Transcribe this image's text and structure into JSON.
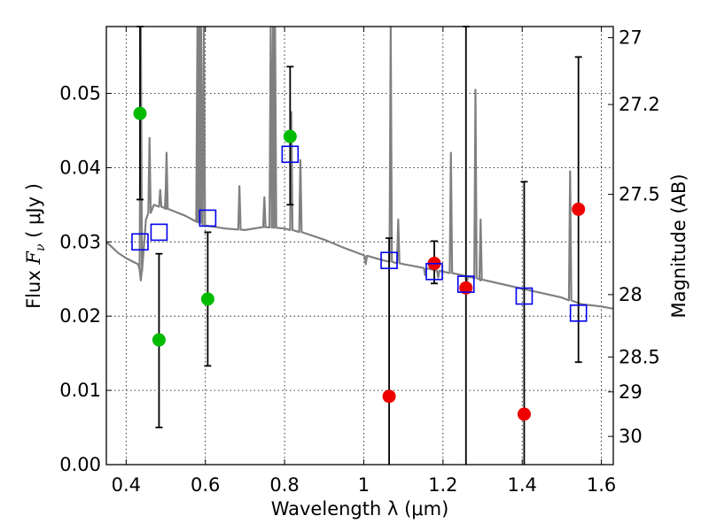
{
  "chart_data": {
    "type": "scatter",
    "xlabel": "Wavelength  λ (μm)",
    "ylabel": "Flux  F_ν  ( μJy )",
    "ylabel_parts": {
      "prefix": "Flux  ",
      "symbol": "F",
      "subscript": "ν",
      "suffix": "  ( μJy )"
    },
    "ylabel_right": "Magnitude (AB)",
    "xlim": [
      0.35,
      1.63
    ],
    "ylim": [
      0.0,
      0.059
    ],
    "grid": true,
    "x_ticks": [
      0.4,
      0.6,
      0.8,
      1.0,
      1.2,
      1.4,
      1.6
    ],
    "x_tick_labels": [
      "0.4",
      "0.6",
      "0.8",
      "1",
      "1.2",
      "1.4",
      "1.6"
    ],
    "y_ticks": [
      0.0,
      0.01,
      0.02,
      0.03,
      0.04,
      0.05
    ],
    "y_tick_labels": [
      "0.00",
      "0.01",
      "0.02",
      "0.03",
      "0.04",
      "0.05"
    ],
    "mag_ticks": [
      27,
      27.2,
      27.5,
      28,
      28.5,
      29,
      30
    ],
    "mag_tick_labels": [
      "27",
      "27.2",
      "27.5",
      "28",
      "28.5",
      "29",
      "30"
    ],
    "mag_tick_flux": [
      0.0575,
      0.0485,
      0.0364,
      0.0229,
      0.0145,
      0.0098,
      0.0038
    ],
    "series": [
      {
        "name": "detections",
        "marker": "circle",
        "color": "#00bb00",
        "points": [
          {
            "x": 0.435,
            "y": 0.0473,
            "err": [
              0.0357,
              0.059
            ]
          },
          {
            "x": 0.483,
            "y": 0.0168,
            "err": [
              0.005,
              0.0284
            ]
          },
          {
            "x": 0.606,
            "y": 0.0223,
            "err": [
              0.0133,
              0.0313
            ]
          },
          {
            "x": 0.814,
            "y": 0.0442,
            "err": [
              0.035,
              0.0536
            ]
          }
        ]
      },
      {
        "name": "upper-limit points",
        "marker": "circle",
        "color": "#ee0000",
        "points": [
          {
            "x": 1.064,
            "y": 0.0092,
            "err": [
              0.0,
              0.0305
            ]
          },
          {
            "x": 1.178,
            "y": 0.0271,
            "err": [
              0.0244,
              0.0301
            ]
          },
          {
            "x": 1.258,
            "y": 0.0238,
            "err": [
              0.0,
              0.059
            ]
          },
          {
            "x": 1.405,
            "y": 0.0068,
            "err": [
              0.0,
              0.0381
            ]
          },
          {
            "x": 1.542,
            "y": 0.0344,
            "err": [
              0.0138,
              0.0549
            ]
          }
        ]
      },
      {
        "name": "model photometry",
        "marker": "open-square",
        "color": "#0000ee",
        "points": [
          {
            "x": 0.435,
            "y": 0.03
          },
          {
            "x": 0.483,
            "y": 0.0313
          },
          {
            "x": 0.606,
            "y": 0.0332
          },
          {
            "x": 0.814,
            "y": 0.0418
          },
          {
            "x": 1.064,
            "y": 0.0275
          },
          {
            "x": 1.178,
            "y": 0.026
          },
          {
            "x": 1.258,
            "y": 0.0243
          },
          {
            "x": 1.405,
            "y": 0.0227
          },
          {
            "x": 1.542,
            "y": 0.0204
          }
        ]
      },
      {
        "name": "model spectrum",
        "type": "line",
        "color": "#808080",
        "continuum": [
          [
            0.35,
            0.03
          ],
          [
            0.38,
            0.0285
          ],
          [
            0.4,
            0.0278
          ],
          [
            0.43,
            0.027
          ],
          [
            0.44,
            0.026
          ],
          [
            0.45,
            0.033
          ],
          [
            0.47,
            0.035
          ],
          [
            0.5,
            0.0345
          ],
          [
            0.55,
            0.0335
          ],
          [
            0.6,
            0.0322
          ],
          [
            0.65,
            0.0318
          ],
          [
            0.7,
            0.0316
          ],
          [
            0.75,
            0.032
          ],
          [
            0.8,
            0.0318
          ],
          [
            0.85,
            0.0312
          ],
          [
            0.9,
            0.0303
          ],
          [
            0.95,
            0.0292
          ],
          [
            1.0,
            0.0282
          ],
          [
            1.05,
            0.0275
          ],
          [
            1.1,
            0.027
          ],
          [
            1.15,
            0.0265
          ],
          [
            1.2,
            0.026
          ],
          [
            1.25,
            0.0255
          ],
          [
            1.3,
            0.0249
          ],
          [
            1.35,
            0.0243
          ],
          [
            1.4,
            0.0237
          ],
          [
            1.45,
            0.0231
          ],
          [
            1.5,
            0.0225
          ],
          [
            1.55,
            0.0216
          ],
          [
            1.6,
            0.0213
          ],
          [
            1.63,
            0.021
          ]
        ],
        "lines": [
          [
            0.437,
            0.059
          ],
          [
            0.459,
            0.044
          ],
          [
            0.486,
            0.037
          ],
          [
            0.502,
            0.042
          ],
          [
            0.5007,
            0.038
          ],
          [
            0.58,
            0.059
          ],
          [
            0.584,
            0.059
          ],
          [
            0.589,
            0.059
          ],
          [
            0.596,
            0.059
          ],
          [
            0.686,
            0.0375
          ],
          [
            0.749,
            0.036
          ],
          [
            0.765,
            0.059
          ],
          [
            0.771,
            0.059
          ],
          [
            0.776,
            0.059
          ],
          [
            0.817,
            0.0475
          ],
          [
            0.84,
            0.041
          ],
          [
            1.068,
            0.059
          ],
          [
            1.087,
            0.033
          ],
          [
            1.22,
            0.042
          ],
          [
            1.282,
            0.0505
          ],
          [
            1.295,
            0.033
          ],
          [
            1.521,
            0.0395
          ]
        ],
        "absorption": [
          [
            0.437,
            0.0248
          ],
          [
            1.005,
            0.027
          ],
          [
            1.155,
            0.0255
          ],
          [
            1.188,
            0.0252
          ],
          [
            1.26,
            0.0243
          ],
          [
            1.295,
            0.0248
          ]
        ]
      }
    ]
  }
}
